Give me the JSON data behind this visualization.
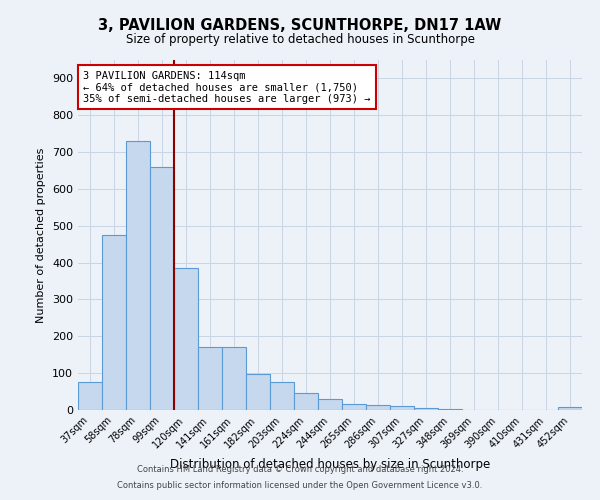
{
  "title": "3, PAVILION GARDENS, SCUNTHORPE, DN17 1AW",
  "subtitle": "Size of property relative to detached houses in Scunthorpe",
  "xlabel": "Distribution of detached houses by size in Scunthorpe",
  "ylabel": "Number of detached properties",
  "footnote1": "Contains HM Land Registry data © Crown copyright and database right 2024.",
  "footnote2": "Contains public sector information licensed under the Open Government Licence v3.0.",
  "categories": [
    "37sqm",
    "58sqm",
    "78sqm",
    "99sqm",
    "120sqm",
    "141sqm",
    "161sqm",
    "182sqm",
    "203sqm",
    "224sqm",
    "244sqm",
    "265sqm",
    "286sqm",
    "307sqm",
    "327sqm",
    "348sqm",
    "369sqm",
    "390sqm",
    "410sqm",
    "431sqm",
    "452sqm"
  ],
  "values": [
    75,
    475,
    730,
    660,
    385,
    170,
    170,
    98,
    75,
    45,
    30,
    15,
    13,
    10,
    5,
    3,
    0,
    0,
    0,
    0,
    8
  ],
  "bar_color": "#c5d8ed",
  "bar_edge_color": "#5b9bd5",
  "vline_color": "#8b0000",
  "vline_x": 3.5,
  "annotation_title": "3 PAVILION GARDENS: 114sqm",
  "annotation_line1": "← 64% of detached houses are smaller (1,750)",
  "annotation_line2": "35% of semi-detached houses are larger (973) →",
  "annotation_box_color": "#ffffff",
  "annotation_border_color": "#cc0000",
  "ylim": [
    0,
    950
  ],
  "yticks": [
    0,
    100,
    200,
    300,
    400,
    500,
    600,
    700,
    800,
    900
  ],
  "bg_color": "#edf2f9",
  "grid_color": "#c8d4e4"
}
